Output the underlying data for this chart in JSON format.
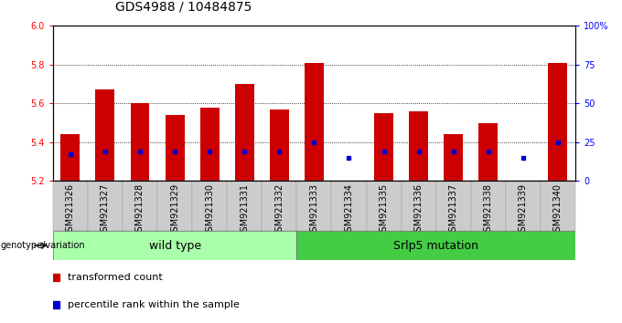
{
  "title": "GDS4988 / 10484875",
  "samples": [
    "GSM921326",
    "GSM921327",
    "GSM921328",
    "GSM921329",
    "GSM921330",
    "GSM921331",
    "GSM921332",
    "GSM921333",
    "GSM921334",
    "GSM921335",
    "GSM921336",
    "GSM921337",
    "GSM921338",
    "GSM921339",
    "GSM921340"
  ],
  "red_values": [
    5.44,
    5.67,
    5.6,
    5.54,
    5.58,
    5.7,
    5.57,
    5.81,
    5.2,
    5.55,
    5.56,
    5.44,
    5.5,
    5.2,
    5.81
  ],
  "blue_values": [
    5.34,
    5.35,
    5.35,
    5.35,
    5.35,
    5.35,
    5.35,
    5.4,
    5.32,
    5.35,
    5.35,
    5.35,
    5.35,
    5.32,
    5.4
  ],
  "ymin": 5.2,
  "ymax": 6.0,
  "yticks": [
    5.2,
    5.4,
    5.6,
    5.8,
    6.0
  ],
  "right_yticks": [
    0,
    25,
    50,
    75,
    100
  ],
  "right_ytick_labels": [
    "0",
    "25",
    "50",
    "75",
    "100%"
  ],
  "group1_label": "wild type",
  "group1_count": 7,
  "group2_label": "Srlp5 mutation",
  "group2_count": 8,
  "genotype_label": "genotype/variation",
  "legend_red": "transformed count",
  "legend_blue": "percentile rank within the sample",
  "bar_color": "#cc0000",
  "blue_color": "#0000cc",
  "bar_width": 0.55,
  "group1_bg": "#aaffaa",
  "group2_bg": "#44cc44",
  "tick_bg": "#cccccc",
  "plot_bg": "#ffffff",
  "title_fontsize": 10,
  "tick_fontsize": 7,
  "legend_fontsize": 8,
  "group_fontsize": 9
}
